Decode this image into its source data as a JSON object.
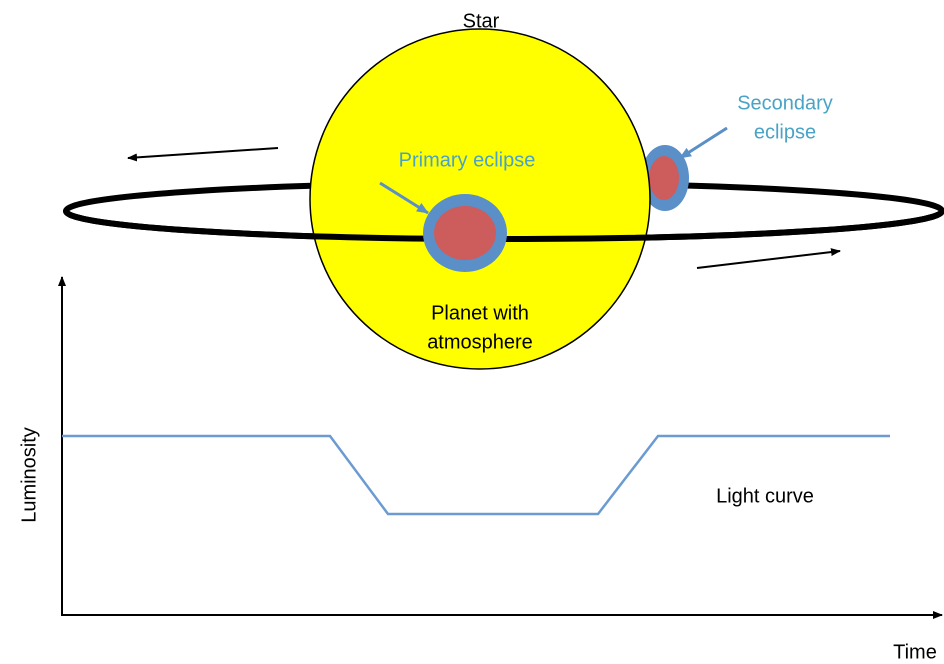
{
  "labels": {
    "star": "Star",
    "primary_eclipse": "Primary eclipse",
    "secondary_eclipse": [
      "Secondary",
      "eclipse"
    ],
    "planet": [
      "Planet with",
      "atmosphere"
    ],
    "light_curve": "Light curve"
  },
  "axes": {
    "y_label": "Luminosity",
    "x_label": "Time"
  }
}
